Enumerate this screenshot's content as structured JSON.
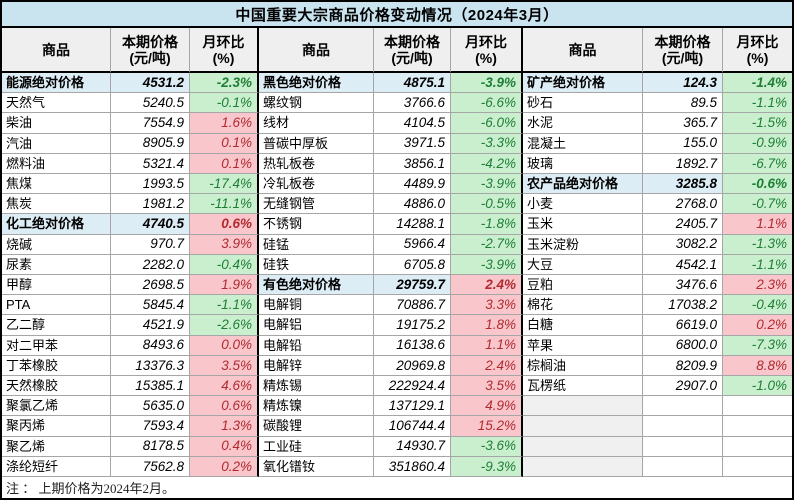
{
  "title": "中国重要大宗商品价格变动情况（2024年3月）",
  "note": "注 ： 上期价格为2024年2月。",
  "header": {
    "commodity": "商品",
    "price_line1": "本期价格",
    "price_line2": "(元/吨)",
    "mom_line1": "月环比",
    "mom_line2": "(%)"
  },
  "colors": {
    "title_bg": "#c9e4ef",
    "header_bg": "#efefef",
    "category_bg": "#ddedf5",
    "up_bg": "#f8c6cb",
    "up_text": "#b02a30",
    "down_bg": "#c9efcf",
    "down_text": "#1e7e34",
    "blank_name_bg": "#f0f0f0",
    "grid_line": "#a6a6a6",
    "frame": "#000000"
  },
  "groups": [
    {
      "rows": [
        {
          "name": "能源绝对价格",
          "price": "4531.2",
          "mom": "-2.3%",
          "category": true
        },
        {
          "name": "天然气",
          "price": "5240.5",
          "mom": "-0.1%"
        },
        {
          "name": "柴油",
          "price": "7554.9",
          "mom": "1.6%"
        },
        {
          "name": "汽油",
          "price": "8905.9",
          "mom": "0.1%"
        },
        {
          "name": "燃料油",
          "price": "5321.4",
          "mom": "0.1%"
        },
        {
          "name": "焦煤",
          "price": "1993.5",
          "mom": "-17.4%"
        },
        {
          "name": "焦炭",
          "price": "1981.2",
          "mom": "-11.1%"
        },
        {
          "name": "化工绝对价格",
          "price": "4740.5",
          "mom": "0.6%",
          "category": true
        },
        {
          "name": "烧碱",
          "price": "970.7",
          "mom": "3.9%"
        },
        {
          "name": "尿素",
          "price": "2282.0",
          "mom": "-0.4%"
        },
        {
          "name": "甲醇",
          "price": "2698.5",
          "mom": "1.9%"
        },
        {
          "name": "PTA",
          "price": "5845.4",
          "mom": "-1.1%"
        },
        {
          "name": "乙二醇",
          "price": "4521.9",
          "mom": "-2.6%"
        },
        {
          "name": "对二甲苯",
          "price": "8493.6",
          "mom": "0.0%"
        },
        {
          "name": "丁苯橡胶",
          "price": "13376.3",
          "mom": "3.5%"
        },
        {
          "name": "天然橡胶",
          "price": "15385.1",
          "mom": "4.6%"
        },
        {
          "name": "聚氯乙烯",
          "price": "5635.0",
          "mom": "0.6%"
        },
        {
          "name": "聚丙烯",
          "price": "7593.4",
          "mom": "1.3%"
        },
        {
          "name": "聚乙烯",
          "price": "8178.5",
          "mom": "0.4%"
        },
        {
          "name": "涤纶短纤",
          "price": "7562.8",
          "mom": "0.2%"
        }
      ]
    },
    {
      "rows": [
        {
          "name": "黑色绝对价格",
          "price": "4875.1",
          "mom": "-3.9%",
          "category": true
        },
        {
          "name": "螺纹钢",
          "price": "3766.6",
          "mom": "-6.6%"
        },
        {
          "name": "线材",
          "price": "4104.5",
          "mom": "-6.0%"
        },
        {
          "name": "普碳中厚板",
          "price": "3971.5",
          "mom": "-3.3%"
        },
        {
          "name": "热轧板卷",
          "price": "3856.1",
          "mom": "-4.2%"
        },
        {
          "name": "冷轧板卷",
          "price": "4489.9",
          "mom": "-3.9%"
        },
        {
          "name": "无缝钢管",
          "price": "4886.0",
          "mom": "-0.5%"
        },
        {
          "name": "不锈钢",
          "price": "14288.1",
          "mom": "-1.8%"
        },
        {
          "name": "硅锰",
          "price": "5966.4",
          "mom": "-2.7%"
        },
        {
          "name": "硅铁",
          "price": "6705.8",
          "mom": "-3.9%"
        },
        {
          "name": "有色绝对价格",
          "price": "29759.7",
          "mom": "2.4%",
          "category": true
        },
        {
          "name": "电解铜",
          "price": "70886.7",
          "mom": "3.3%"
        },
        {
          "name": "电解铝",
          "price": "19175.2",
          "mom": "1.8%"
        },
        {
          "name": "电解铅",
          "price": "16138.6",
          "mom": "1.1%"
        },
        {
          "name": "电解锌",
          "price": "20969.8",
          "mom": "2.4%"
        },
        {
          "name": "精炼锡",
          "price": "222924.4",
          "mom": "3.5%"
        },
        {
          "name": "精炼镍",
          "price": "137129.1",
          "mom": "4.9%"
        },
        {
          "name": "碳酸锂",
          "price": "106744.4",
          "mom": "15.2%"
        },
        {
          "name": "工业硅",
          "price": "14930.7",
          "mom": "-3.6%"
        },
        {
          "name": "氧化镨钕",
          "price": "351860.4",
          "mom": "-9.3%"
        }
      ]
    },
    {
      "rows": [
        {
          "name": "矿产绝对价格",
          "price": "124.3",
          "mom": "-1.4%",
          "category": true
        },
        {
          "name": "砂石",
          "price": "89.5",
          "mom": "-1.1%"
        },
        {
          "name": "水泥",
          "price": "365.7",
          "mom": "-1.5%"
        },
        {
          "name": "混凝土",
          "price": "155.0",
          "mom": "-0.9%"
        },
        {
          "name": "玻璃",
          "price": "1892.7",
          "mom": "-6.7%"
        },
        {
          "name": "农产品绝对价格",
          "price": "3285.8",
          "mom": "-0.6%",
          "category": true
        },
        {
          "name": "小麦",
          "price": "2768.0",
          "mom": "-0.7%"
        },
        {
          "name": "玉米",
          "price": "2405.7",
          "mom": "1.1%"
        },
        {
          "name": "玉米淀粉",
          "price": "3082.2",
          "mom": "-1.3%"
        },
        {
          "name": "大豆",
          "price": "4542.1",
          "mom": "-1.1%"
        },
        {
          "name": "豆粕",
          "price": "3476.6",
          "mom": "2.3%"
        },
        {
          "name": "棉花",
          "price": "17038.2",
          "mom": "-0.4%"
        },
        {
          "name": "白糖",
          "price": "6619.0",
          "mom": "0.2%"
        },
        {
          "name": "苹果",
          "price": "6800.0",
          "mom": "-7.3%"
        },
        {
          "name": "棕榈油",
          "price": "8209.9",
          "mom": "8.8%"
        },
        {
          "name": "瓦楞纸",
          "price": "2907.0",
          "mom": "-1.0%"
        },
        {
          "name": "",
          "price": "",
          "mom": "",
          "blank": true
        },
        {
          "name": "",
          "price": "",
          "mom": "",
          "blank": true
        },
        {
          "name": "",
          "price": "",
          "mom": "",
          "blank": true
        },
        {
          "name": "",
          "price": "",
          "mom": "",
          "blank": true
        }
      ]
    }
  ]
}
